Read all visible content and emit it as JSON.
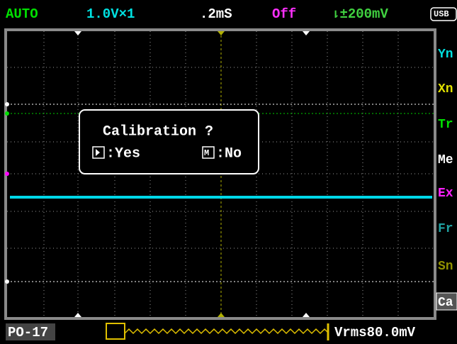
{
  "status_bar": {
    "mode": "AUTO",
    "volts": "1.0V×1",
    "timebase": ".2mS",
    "offset": "Off",
    "trigger": "⇂±200mV",
    "usb": "USB"
  },
  "dialog": {
    "title": "Calibration ?",
    "yes": ":Yes",
    "no": ":No"
  },
  "menu": [
    "Yn",
    "Xn",
    "Tr",
    "Me",
    "Ex",
    "Fr",
    "Sn",
    "Ca"
  ],
  "bottom_bar": {
    "file": "PO-17",
    "measure": "Vrms80.0mV"
  }
}
